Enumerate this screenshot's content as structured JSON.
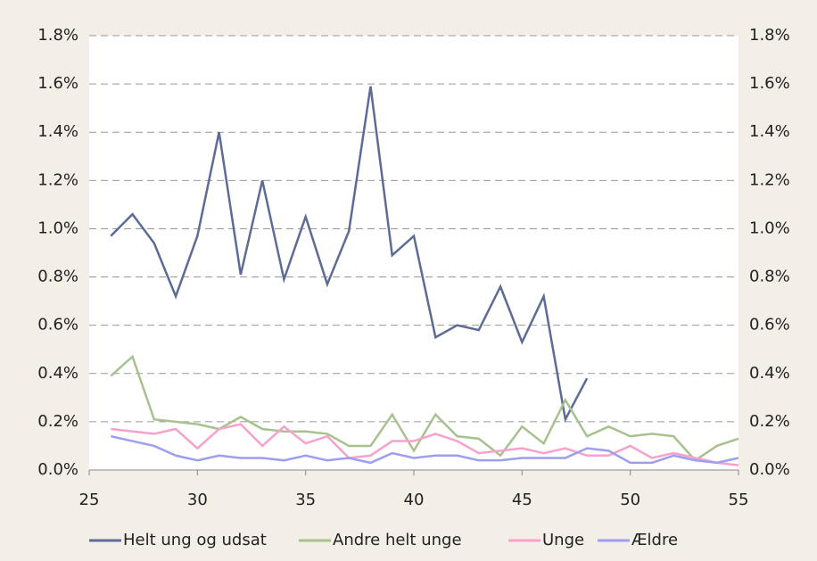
{
  "chart_data": {
    "type": "line",
    "x": [
      26,
      27,
      28,
      29,
      30,
      31,
      32,
      33,
      34,
      35,
      36,
      37,
      38,
      39,
      40,
      41,
      42,
      43,
      44,
      45,
      46,
      47,
      48,
      49,
      50,
      51,
      52,
      53,
      54,
      55
    ],
    "series": [
      {
        "name": "Helt ung og udsat",
        "color": "#5d6b96",
        "values": [
          0.97,
          1.06,
          0.94,
          0.72,
          0.97,
          1.4,
          0.81,
          1.2,
          0.79,
          1.05,
          0.77,
          0.99,
          1.59,
          0.89,
          0.97,
          0.55,
          0.6,
          0.58,
          0.76,
          0.53,
          0.72,
          0.21,
          0.38,
          null,
          null,
          null,
          null,
          null,
          null,
          null
        ]
      },
      {
        "name": "Andre helt unge",
        "color": "#a7c28f",
        "values": [
          0.39,
          0.47,
          0.21,
          0.2,
          0.19,
          0.17,
          0.22,
          0.17,
          0.16,
          0.16,
          0.15,
          0.1,
          0.1,
          0.23,
          0.08,
          0.23,
          0.14,
          0.13,
          0.06,
          0.18,
          0.11,
          0.29,
          0.14,
          0.18,
          0.14,
          0.15,
          0.14,
          0.04,
          0.1,
          0.13
        ]
      },
      {
        "name": "Unge",
        "color": "#f7a1cb",
        "values": [
          0.17,
          0.16,
          0.15,
          0.17,
          0.09,
          0.17,
          0.19,
          0.1,
          0.18,
          0.11,
          0.14,
          0.05,
          0.06,
          0.12,
          0.12,
          0.15,
          0.12,
          0.07,
          0.08,
          0.09,
          0.07,
          0.09,
          0.06,
          0.06,
          0.1,
          0.05,
          0.07,
          0.05,
          0.03,
          0.02
        ]
      },
      {
        "name": "Ældre",
        "color": "#9d9ef0",
        "values": [
          0.14,
          0.12,
          0.1,
          0.06,
          0.04,
          0.06,
          0.05,
          0.05,
          0.04,
          0.06,
          0.04,
          0.05,
          0.03,
          0.07,
          0.05,
          0.06,
          0.06,
          0.04,
          0.04,
          0.05,
          0.05,
          0.05,
          0.09,
          0.08,
          0.03,
          0.03,
          0.06,
          0.04,
          0.03,
          0.05
        ]
      }
    ],
    "xlim": [
      25,
      55
    ],
    "xticks": [
      25,
      30,
      35,
      40,
      45,
      50,
      55
    ],
    "ylim": [
      0,
      1.8
    ],
    "yticks": [
      {
        "value": 0,
        "label": "0.0%"
      },
      {
        "value": 0.2,
        "label": "0.2%"
      },
      {
        "value": 0.4,
        "label": "0.4%"
      },
      {
        "value": 0.6,
        "label": "0.6%"
      },
      {
        "value": 0.8,
        "label": "0.8%"
      },
      {
        "value": 1.0,
        "label": "1.0%"
      },
      {
        "value": 1.2,
        "label": "1.2%"
      },
      {
        "value": 1.4,
        "label": "1.4%"
      },
      {
        "value": 1.6,
        "label": "1.6%"
      },
      {
        "value": 1.8,
        "label": "1.8%"
      }
    ],
    "y2lim": [
      0,
      1.8
    ],
    "y2ticks": [
      {
        "value": 0,
        "label": "0.0%"
      },
      {
        "value": 0.2,
        "label": "0.2%"
      },
      {
        "value": 0.4,
        "label": "0.4%"
      },
      {
        "value": 0.6,
        "label": "0.6%"
      },
      {
        "value": 0.8,
        "label": "0.8%"
      },
      {
        "value": 1.0,
        "label": "1.0%"
      },
      {
        "value": 1.2,
        "label": "1.2%"
      },
      {
        "value": 1.4,
        "label": "1.4%"
      },
      {
        "value": 1.6,
        "label": "1.6%"
      },
      {
        "value": 1.8,
        "label": "1.8%"
      }
    ],
    "grid": true,
    "legend": "bottom"
  }
}
